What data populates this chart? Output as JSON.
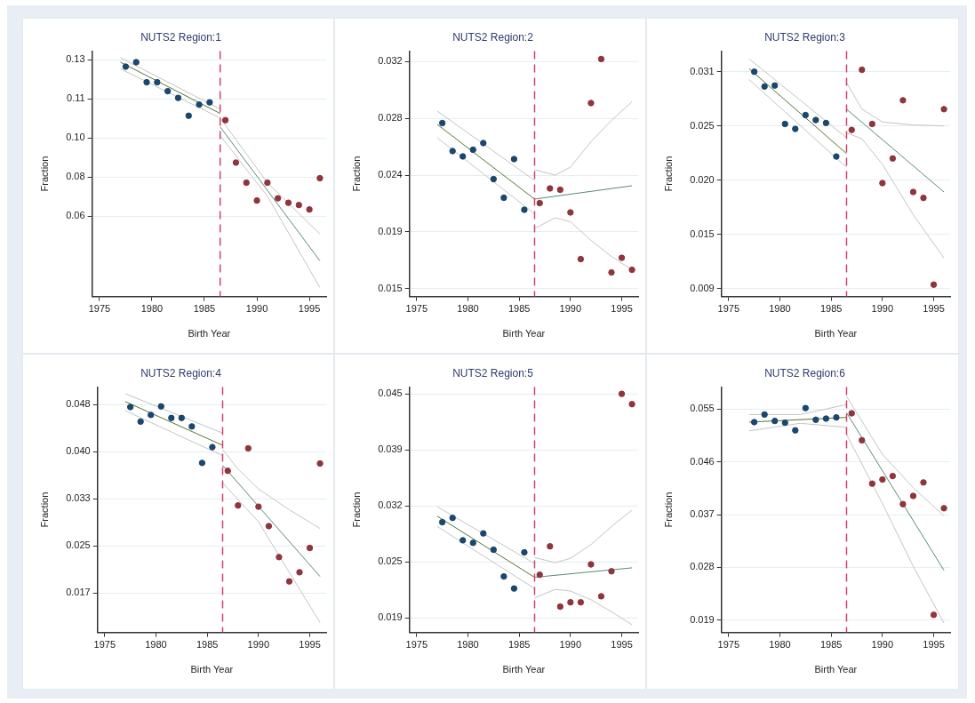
{
  "chart_data": [
    {
      "type": "scatter",
      "title": "NUTS2 Region:1",
      "xlabel": "Birth Year",
      "ylabel": "Fraction",
      "xlim": [
        1974.3,
        1996.6
      ],
      "xticks": [
        1975,
        1980,
        1985,
        1990,
        1995
      ],
      "ylim": [
        0.024,
        0.134
      ],
      "yticks": [
        {
          "value": 0.06,
          "label": "0.06"
        },
        {
          "value": 0.0775,
          "label": "0.08"
        },
        {
          "value": 0.095,
          "label": "0.10"
        },
        {
          "value": 0.1125,
          "label": "0.11"
        },
        {
          "value": 0.13,
          "label": "0.13"
        }
      ],
      "grid": "y",
      "ref_lines": [
        {
          "axis": "x",
          "value": 1986.5,
          "color": "#d0426a",
          "line_style": "dashed"
        }
      ],
      "series": [
        {
          "marker": "circle",
          "color": "#1a476f",
          "x": [
            1977.5,
            1978.5,
            1979.5,
            1980.5,
            1981.5,
            1982.5,
            1983.5,
            1984.5,
            1985.5
          ],
          "values": [
            0.127,
            0.129,
            0.12,
            0.12,
            0.116,
            0.113,
            0.105,
            0.11,
            0.111
          ]
        },
        {
          "marker": "circle",
          "color": "#90353b",
          "x": [
            1987,
            1988,
            1989,
            1990,
            1991,
            1992,
            1993,
            1994,
            1995,
            1996
          ],
          "values": [
            0.103,
            0.084,
            0.075,
            0.067,
            0.075,
            0.068,
            0.066,
            0.065,
            0.063,
            0.077
          ]
        },
        {
          "type": "line",
          "color": "#55752f",
          "x": [
            1977,
            1986.5
          ],
          "values": [
            0.129,
            0.106
          ]
        },
        {
          "type": "line",
          "color": "#c4c4c4",
          "x": [
            1977,
            1986.5
          ],
          "values": [
            0.131,
            0.108
          ]
        },
        {
          "type": "line",
          "color": "#c4c4c4",
          "x": [
            1977,
            1986.5
          ],
          "values": [
            0.126,
            0.104
          ]
        },
        {
          "type": "line",
          "color": "#5b8a72",
          "x": [
            1986.5,
            1996
          ],
          "values": [
            0.1,
            0.04
          ]
        },
        {
          "type": "line",
          "color": "#c4c4c4",
          "x": [
            1986.5,
            1991,
            1996
          ],
          "values": [
            0.104,
            0.075,
            0.052
          ]
        },
        {
          "type": "line",
          "color": "#c4c4c4",
          "x": [
            1986.5,
            1991,
            1996
          ],
          "values": [
            0.096,
            0.069,
            0.028
          ]
        }
      ]
    },
    {
      "type": "scatter",
      "title": "NUTS2 Region:2",
      "xlabel": "Birth Year",
      "ylabel": "Fraction",
      "xlim": [
        1974.3,
        1996.6
      ],
      "xticks": [
        1975,
        1980,
        1985,
        1990,
        1995
      ],
      "ylim": [
        0.0144,
        0.0328
      ],
      "yticks": [
        {
          "value": 0.015,
          "label": "0.015"
        },
        {
          "value": 0.01925,
          "label": "0.019"
        },
        {
          "value": 0.0235,
          "label": "0.024"
        },
        {
          "value": 0.02775,
          "label": "0.028"
        },
        {
          "value": 0.032,
          "label": "0.032"
        }
      ],
      "grid": "y",
      "ref_lines": [
        {
          "axis": "x",
          "value": 1986.5,
          "color": "#d0426a",
          "line_style": "dashed"
        }
      ],
      "series": [
        {
          "marker": "circle",
          "color": "#1a476f",
          "x": [
            1977.5,
            1978.5,
            1979.5,
            1980.5,
            1981.5,
            1982.5,
            1983.5,
            1984.5,
            1985.5
          ],
          "values": [
            0.0274,
            0.0253,
            0.0249,
            0.0254,
            0.0259,
            0.0232,
            0.0218,
            0.0247,
            0.0209
          ]
        },
        {
          "marker": "circle",
          "color": "#90353b",
          "x": [
            1987,
            1988,
            1989,
            1990,
            1991,
            1992,
            1993,
            1994,
            1995,
            1996
          ],
          "values": [
            0.0214,
            0.0225,
            0.0224,
            0.0207,
            0.0172,
            0.0289,
            0.0322,
            0.0162,
            0.0173,
            0.0164
          ]
        },
        {
          "type": "line",
          "color": "#55752f",
          "x": [
            1977,
            1986.5
          ],
          "values": [
            0.0273,
            0.0217
          ]
        },
        {
          "type": "line",
          "color": "#c4c4c4",
          "x": [
            1977,
            1986.5
          ],
          "values": [
            0.0283,
            0.0231
          ]
        },
        {
          "type": "line",
          "color": "#c4c4c4",
          "x": [
            1977,
            1986.5
          ],
          "values": [
            0.0263,
            0.0206
          ]
        },
        {
          "type": "line",
          "color": "#5b8a72",
          "x": [
            1986.5,
            1996
          ],
          "values": [
            0.0217,
            0.0227
          ]
        },
        {
          "type": "line",
          "color": "#c4c4c4",
          "x": [
            1986.5,
            1988.5,
            1990,
            1992,
            1994,
            1996
          ],
          "values": [
            0.0239,
            0.0235,
            0.0241,
            0.026,
            0.0276,
            0.029
          ]
        },
        {
          "type": "line",
          "color": "#c4c4c4",
          "x": [
            1986.5,
            1988.5,
            1990,
            1992,
            1994,
            1996
          ],
          "values": [
            0.0195,
            0.0203,
            0.02,
            0.0186,
            0.0174,
            0.0164
          ]
        }
      ]
    },
    {
      "type": "scatter",
      "title": "NUTS2 Region:3",
      "xlabel": "Birth Year",
      "ylabel": "Fraction",
      "xlim": [
        1974.3,
        1996.6
      ],
      "xticks": [
        1975,
        1980,
        1985,
        1990,
        1995
      ],
      "ylim": [
        0.0082,
        0.0331
      ],
      "yticks": [
        {
          "value": 0.009,
          "label": "0.009"
        },
        {
          "value": 0.0145,
          "label": "0.015"
        },
        {
          "value": 0.02,
          "label": "0.020"
        },
        {
          "value": 0.0255,
          "label": "0.025"
        },
        {
          "value": 0.031,
          "label": "0.031"
        }
      ],
      "grid": "y",
      "ref_lines": [
        {
          "axis": "x",
          "value": 1986.5,
          "color": "#d0426a",
          "line_style": "dashed"
        }
      ],
      "series": [
        {
          "marker": "circle",
          "color": "#1a476f",
          "x": [
            1977.5,
            1978.5,
            1979.5,
            1980.5,
            1981.5,
            1982.5,
            1983.5,
            1984.5,
            1985.5
          ],
          "values": [
            0.031,
            0.0295,
            0.0296,
            0.0257,
            0.0252,
            0.0266,
            0.0261,
            0.0258,
            0.0224
          ]
        },
        {
          "marker": "circle",
          "color": "#90353b",
          "x": [
            1987,
            1988,
            1989,
            1990,
            1991,
            1992,
            1993,
            1994,
            1995,
            1996
          ],
          "values": [
            0.0251,
            0.0312,
            0.0257,
            0.0197,
            0.0222,
            0.0281,
            0.0188,
            0.0182,
            0.0094,
            0.0272
          ]
        },
        {
          "type": "line",
          "color": "#55752f",
          "x": [
            1977,
            1986.5
          ],
          "values": [
            0.0313,
            0.0227
          ]
        },
        {
          "type": "line",
          "color": "#c4c4c4",
          "x": [
            1977,
            1986.5
          ],
          "values": [
            0.0323,
            0.0243
          ]
        },
        {
          "type": "line",
          "color": "#c4c4c4",
          "x": [
            1977,
            1986.5
          ],
          "values": [
            0.0302,
            0.0213
          ]
        },
        {
          "type": "line",
          "color": "#5b8a72",
          "x": [
            1986.5,
            1996
          ],
          "values": [
            0.0272,
            0.0188
          ]
        },
        {
          "type": "line",
          "color": "#c4c4c4",
          "x": [
            1986.5,
            1988,
            1990,
            1993,
            1996
          ],
          "values": [
            0.0299,
            0.0272,
            0.0259,
            0.0256,
            0.0255
          ]
        },
        {
          "type": "line",
          "color": "#c4c4c4",
          "x": [
            1986.5,
            1988,
            1990,
            1993,
            1996
          ],
          "values": [
            0.0248,
            0.0242,
            0.0216,
            0.0165,
            0.0121
          ]
        }
      ]
    },
    {
      "type": "scatter",
      "title": "NUTS2 Region:4",
      "xlabel": "Birth Year",
      "ylabel": "Fraction",
      "xlim": [
        1974.3,
        1996.6
      ],
      "xticks": [
        1975,
        1980,
        1985,
        1990,
        1995
      ],
      "ylim": [
        0.0105,
        0.0509
      ],
      "yticks": [
        {
          "value": 0.017,
          "label": "0.017"
        },
        {
          "value": 0.02475,
          "label": "0.025"
        },
        {
          "value": 0.0325,
          "label": "0.033"
        },
        {
          "value": 0.04025,
          "label": "0.040"
        },
        {
          "value": 0.048,
          "label": "0.048"
        }
      ],
      "grid": "y",
      "ref_lines": [
        {
          "axis": "x",
          "value": 1986.5,
          "color": "#d0426a",
          "line_style": "dashed"
        }
      ],
      "series": [
        {
          "marker": "circle",
          "color": "#1a476f",
          "x": [
            1977.5,
            1978.5,
            1979.5,
            1980.5,
            1981.5,
            1982.5,
            1983.5,
            1984.5,
            1985.5
          ],
          "values": [
            0.0476,
            0.0452,
            0.0463,
            0.0477,
            0.0458,
            0.0458,
            0.0444,
            0.0384,
            0.041
          ]
        },
        {
          "marker": "circle",
          "color": "#90353b",
          "x": [
            1987,
            1988,
            1989,
            1990,
            1991,
            1992,
            1993,
            1994,
            1995,
            1996
          ],
          "values": [
            0.0371,
            0.0314,
            0.0408,
            0.0312,
            0.028,
            0.0229,
            0.0189,
            0.0204,
            0.0244,
            0.0383
          ]
        },
        {
          "type": "line",
          "color": "#55752f",
          "x": [
            1977,
            1986.5
          ],
          "values": [
            0.0485,
            0.0413
          ]
        },
        {
          "type": "line",
          "color": "#c4c4c4",
          "x": [
            1977,
            1986.5
          ],
          "values": [
            0.0498,
            0.0433
          ]
        },
        {
          "type": "line",
          "color": "#c4c4c4",
          "x": [
            1977,
            1986.5
          ],
          "values": [
            0.047,
            0.0396
          ]
        },
        {
          "type": "line",
          "color": "#5b8a72",
          "x": [
            1986.5,
            1996
          ],
          "values": [
            0.038,
            0.0197
          ]
        },
        {
          "type": "line",
          "color": "#c4c4c4",
          "x": [
            1986.5,
            1988,
            1990,
            1993,
            1996
          ],
          "values": [
            0.0406,
            0.0374,
            0.0341,
            0.0307,
            0.0276
          ]
        },
        {
          "type": "line",
          "color": "#c4c4c4",
          "x": [
            1986.5,
            1990,
            1993,
            1996
          ],
          "values": [
            0.0351,
            0.0287,
            0.0204,
            0.0121
          ]
        }
      ]
    },
    {
      "type": "scatter",
      "title": "NUTS2 Region:5",
      "xlabel": "Birth Year",
      "ylabel": "Fraction",
      "xlim": [
        1974.3,
        1996.6
      ],
      "xticks": [
        1975,
        1980,
        1985,
        1990,
        1995
      ],
      "ylim": [
        0.0173,
        0.0458
      ],
      "yticks": [
        {
          "value": 0.019,
          "label": "0.019"
        },
        {
          "value": 0.0255,
          "label": "0.025"
        },
        {
          "value": 0.032,
          "label": "0.032"
        },
        {
          "value": 0.0385,
          "label": "0.039"
        },
        {
          "value": 0.045,
          "label": "0.045"
        }
      ],
      "grid": "y",
      "ref_lines": [
        {
          "axis": "x",
          "value": 1986.5,
          "color": "#d0426a",
          "line_style": "dashed"
        }
      ],
      "series": [
        {
          "marker": "circle",
          "color": "#1a476f",
          "x": [
            1977.5,
            1978.5,
            1979.5,
            1980.5,
            1981.5,
            1982.5,
            1983.5,
            1984.5,
            1985.5
          ],
          "values": [
            0.0301,
            0.0306,
            0.028,
            0.0277,
            0.0288,
            0.0269,
            0.0238,
            0.0224,
            0.0266
          ]
        },
        {
          "marker": "circle",
          "color": "#90353b",
          "x": [
            1987,
            1988,
            1989,
            1990,
            1991,
            1992,
            1993,
            1994,
            1995,
            1996
          ],
          "values": [
            0.024,
            0.0273,
            0.0203,
            0.0208,
            0.0208,
            0.0252,
            0.0215,
            0.0244,
            0.045,
            0.0438
          ]
        },
        {
          "type": "line",
          "color": "#55752f",
          "x": [
            1977,
            1986.5
          ],
          "values": [
            0.0308,
            0.0237
          ]
        },
        {
          "type": "line",
          "color": "#c4c4c4",
          "x": [
            1977,
            1986.5
          ],
          "values": [
            0.0319,
            0.0253
          ]
        },
        {
          "type": "line",
          "color": "#c4c4c4",
          "x": [
            1977,
            1986.5
          ],
          "values": [
            0.0296,
            0.0224
          ]
        },
        {
          "type": "line",
          "color": "#5b8a72",
          "x": [
            1986.5,
            1996
          ],
          "values": [
            0.0237,
            0.0248
          ]
        },
        {
          "type": "line",
          "color": "#c4c4c4",
          "x": [
            1986.5,
            1988.5,
            1990,
            1992,
            1994,
            1996
          ],
          "values": [
            0.026,
            0.0254,
            0.0259,
            0.0275,
            0.0296,
            0.0315
          ]
        },
        {
          "type": "line",
          "color": "#c4c4c4",
          "x": [
            1986.5,
            1988.5,
            1990,
            1992,
            1994,
            1996
          ],
          "values": [
            0.0213,
            0.0223,
            0.0221,
            0.0211,
            0.0197,
            0.0182
          ]
        }
      ]
    },
    {
      "type": "scatter",
      "title": "NUTS2 Region:6",
      "xlabel": "Birth Year",
      "ylabel": "Fraction",
      "xlim": [
        1974.3,
        1996.6
      ],
      "xticks": [
        1975,
        1980,
        1985,
        1990,
        1995
      ],
      "ylim": [
        0.0169,
        0.0588
      ],
      "yticks": [
        {
          "value": 0.019,
          "label": "0.019"
        },
        {
          "value": 0.028,
          "label": "0.028"
        },
        {
          "value": 0.037,
          "label": "0.037"
        },
        {
          "value": 0.046,
          "label": "0.046"
        },
        {
          "value": 0.055,
          "label": "0.055"
        }
      ],
      "grid": "y",
      "ref_lines": [
        {
          "axis": "x",
          "value": 1986.5,
          "color": "#d0426a",
          "line_style": "dashed"
        }
      ],
      "series": [
        {
          "marker": "circle",
          "color": "#1a476f",
          "x": [
            1977.5,
            1978.5,
            1979.5,
            1980.5,
            1981.5,
            1982.5,
            1983.5,
            1984.5,
            1985.5
          ],
          "values": [
            0.0528,
            0.0541,
            0.053,
            0.0527,
            0.0514,
            0.0552,
            0.0532,
            0.0534,
            0.0536
          ]
        },
        {
          "marker": "circle",
          "color": "#90353b",
          "x": [
            1987,
            1988,
            1989,
            1990,
            1991,
            1992,
            1993,
            1994,
            1995,
            1996
          ],
          "values": [
            0.0543,
            0.0497,
            0.0423,
            0.043,
            0.0436,
            0.0388,
            0.0402,
            0.0425,
            0.0199,
            0.0381
          ]
        },
        {
          "type": "line",
          "color": "#55752f",
          "x": [
            1977,
            1986.5
          ],
          "values": [
            0.0528,
            0.0536
          ]
        },
        {
          "type": "line",
          "color": "#c4c4c4",
          "x": [
            1977,
            1982,
            1986.5
          ],
          "values": [
            0.0541,
            0.0541,
            0.0558
          ]
        },
        {
          "type": "line",
          "color": "#c4c4c4",
          "x": [
            1977,
            1982,
            1986.5
          ],
          "values": [
            0.0513,
            0.0526,
            0.0519
          ]
        },
        {
          "type": "line",
          "color": "#5b8a72",
          "x": [
            1986.5,
            1996
          ],
          "values": [
            0.0544,
            0.0275
          ]
        },
        {
          "type": "line",
          "color": "#c4c4c4",
          "x": [
            1986.5,
            1990,
            1993,
            1996
          ],
          "values": [
            0.0572,
            0.0473,
            0.0416,
            0.0368
          ]
        },
        {
          "type": "line",
          "color": "#c4c4c4",
          "x": [
            1986.5,
            1990,
            1993,
            1996
          ],
          "values": [
            0.0507,
            0.0389,
            0.0282,
            0.0185
          ]
        }
      ]
    }
  ]
}
